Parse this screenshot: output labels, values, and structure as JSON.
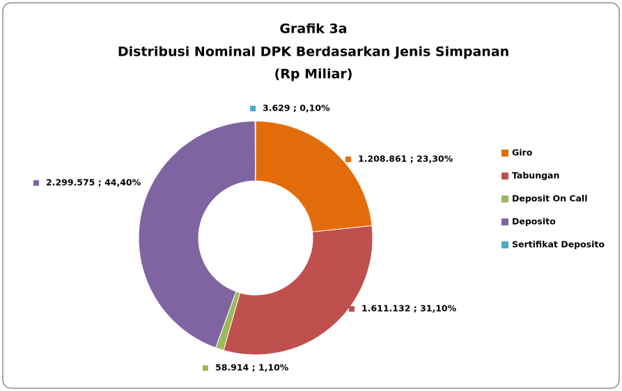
{
  "chart_data": {
    "type": "donut",
    "title": [
      "Grafik 3a",
      "Distribusi Nominal  DPK Berdasarkan Jenis Simpanan",
      "(Rp Miliar)"
    ],
    "categories": [
      "Giro",
      "Tabungan",
      "Deposit On Call",
      "Deposito",
      "Sertifikat Deposito"
    ],
    "values": [
      1208861,
      1611132,
      58914,
      2299575,
      3629
    ],
    "value_labels": [
      "1.208.861 ; 23,30%",
      "1.611.132 ; 31,10%",
      "58.914 ; 1,10%",
      "2.299.575 ; 44,40%",
      "3.629 ; 0,10%"
    ],
    "colors": [
      "#e36c0a",
      "#c0504d",
      "#9bbb59",
      "#8064a2",
      "#4bacc6"
    ],
    "legend": "right"
  }
}
